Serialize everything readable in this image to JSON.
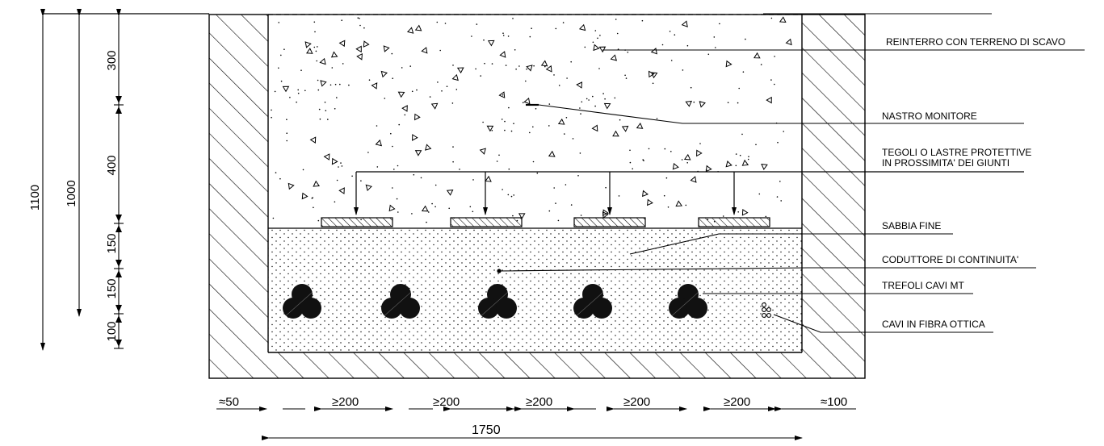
{
  "labels": {
    "reinterro": "REINTERRO CON TERRENO DI SCAVO",
    "nastro": "NASTRO MONITORE",
    "tegoli_1": "TEGOLI O LASTRE PROTETTIVE",
    "tegoli_2": "IN PROSSIMITA' DEI GIUNTI",
    "sabbia": "SABBIA FINE",
    "coduttore": "CODUTTORE DI CONTINUITA'",
    "trefoli": "TREFOLI CAVI MT",
    "fibra": "CAVI IN FIBRA OTTICA"
  },
  "vertical_dims": {
    "total_1100": "1100",
    "total_1000": "1000",
    "seg_300": "300",
    "seg_400": "400",
    "seg_150a": "150",
    "seg_150b": "150",
    "seg_100": "100"
  },
  "horizontal_dims": {
    "left": "≈50",
    "gap1": "≥200",
    "gap2": "≥200",
    "gap3": "≥200",
    "gap4": "≥200",
    "gap5": "≥200",
    "right": "≈100",
    "overall": "1750"
  },
  "colors": {
    "line": "#000000",
    "background": "#ffffff"
  },
  "trefoil_count": 5,
  "protective_tile_count": 4
}
